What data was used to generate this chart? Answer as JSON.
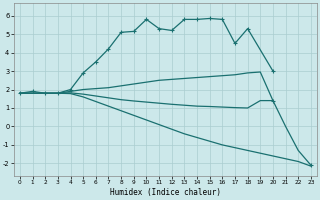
{
  "xlabel": "Humidex (Indice chaleur)",
  "background_color": "#cce8ea",
  "grid_color": "#aacdd0",
  "line_color": "#1a7070",
  "xlim": [
    -0.5,
    23.5
  ],
  "ylim": [
    -2.7,
    6.7
  ],
  "yticks": [
    -2,
    -1,
    0,
    1,
    2,
    3,
    4,
    5,
    6
  ],
  "xticks": [
    0,
    1,
    2,
    3,
    4,
    5,
    6,
    7,
    8,
    9,
    10,
    11,
    12,
    13,
    14,
    15,
    16,
    17,
    18,
    19,
    20,
    21,
    22,
    23
  ],
  "line1_x": [
    0,
    1,
    2,
    3,
    4,
    5,
    6,
    7,
    8,
    9,
    10,
    11,
    12,
    13,
    14,
    15,
    16,
    17,
    18,
    20
  ],
  "line1_y": [
    1.8,
    1.9,
    1.8,
    1.8,
    2.0,
    2.9,
    3.5,
    4.2,
    5.1,
    5.15,
    5.8,
    5.3,
    5.2,
    5.8,
    5.8,
    5.85,
    5.8,
    4.5,
    5.3,
    3.0
  ],
  "line2_x": [
    0,
    2,
    3,
    4,
    5,
    6,
    7,
    8,
    9,
    10,
    11,
    12,
    13,
    14,
    15,
    16,
    17,
    18,
    19,
    20
  ],
  "line2_y": [
    1.8,
    1.8,
    1.8,
    1.9,
    2.0,
    2.05,
    2.1,
    2.2,
    2.3,
    2.4,
    2.5,
    2.55,
    2.6,
    2.65,
    2.7,
    2.75,
    2.8,
    2.9,
    2.95,
    1.4
  ],
  "line3_x": [
    0,
    2,
    3,
    4,
    5,
    6,
    7,
    8,
    9,
    10,
    11,
    12,
    13,
    14,
    15,
    16,
    17,
    18,
    19,
    20,
    21,
    22,
    23
  ],
  "line3_y": [
    1.8,
    1.8,
    1.8,
    1.82,
    1.75,
    1.65,
    1.55,
    1.45,
    1.38,
    1.32,
    1.26,
    1.2,
    1.15,
    1.1,
    1.08,
    1.05,
    1.02,
    1.0,
    1.4,
    1.4,
    0.0,
    -1.3,
    -2.1
  ],
  "line4_x": [
    0,
    2,
    3,
    4,
    5,
    6,
    7,
    8,
    9,
    10,
    11,
    12,
    13,
    14,
    15,
    16,
    17,
    18,
    19,
    20,
    21,
    22,
    23
  ],
  "line4_y": [
    1.8,
    1.8,
    1.8,
    1.78,
    1.6,
    1.35,
    1.1,
    0.85,
    0.6,
    0.35,
    0.1,
    -0.15,
    -0.4,
    -0.6,
    -0.8,
    -1.0,
    -1.15,
    -1.3,
    -1.45,
    -1.6,
    -1.75,
    -1.9,
    -2.15
  ]
}
